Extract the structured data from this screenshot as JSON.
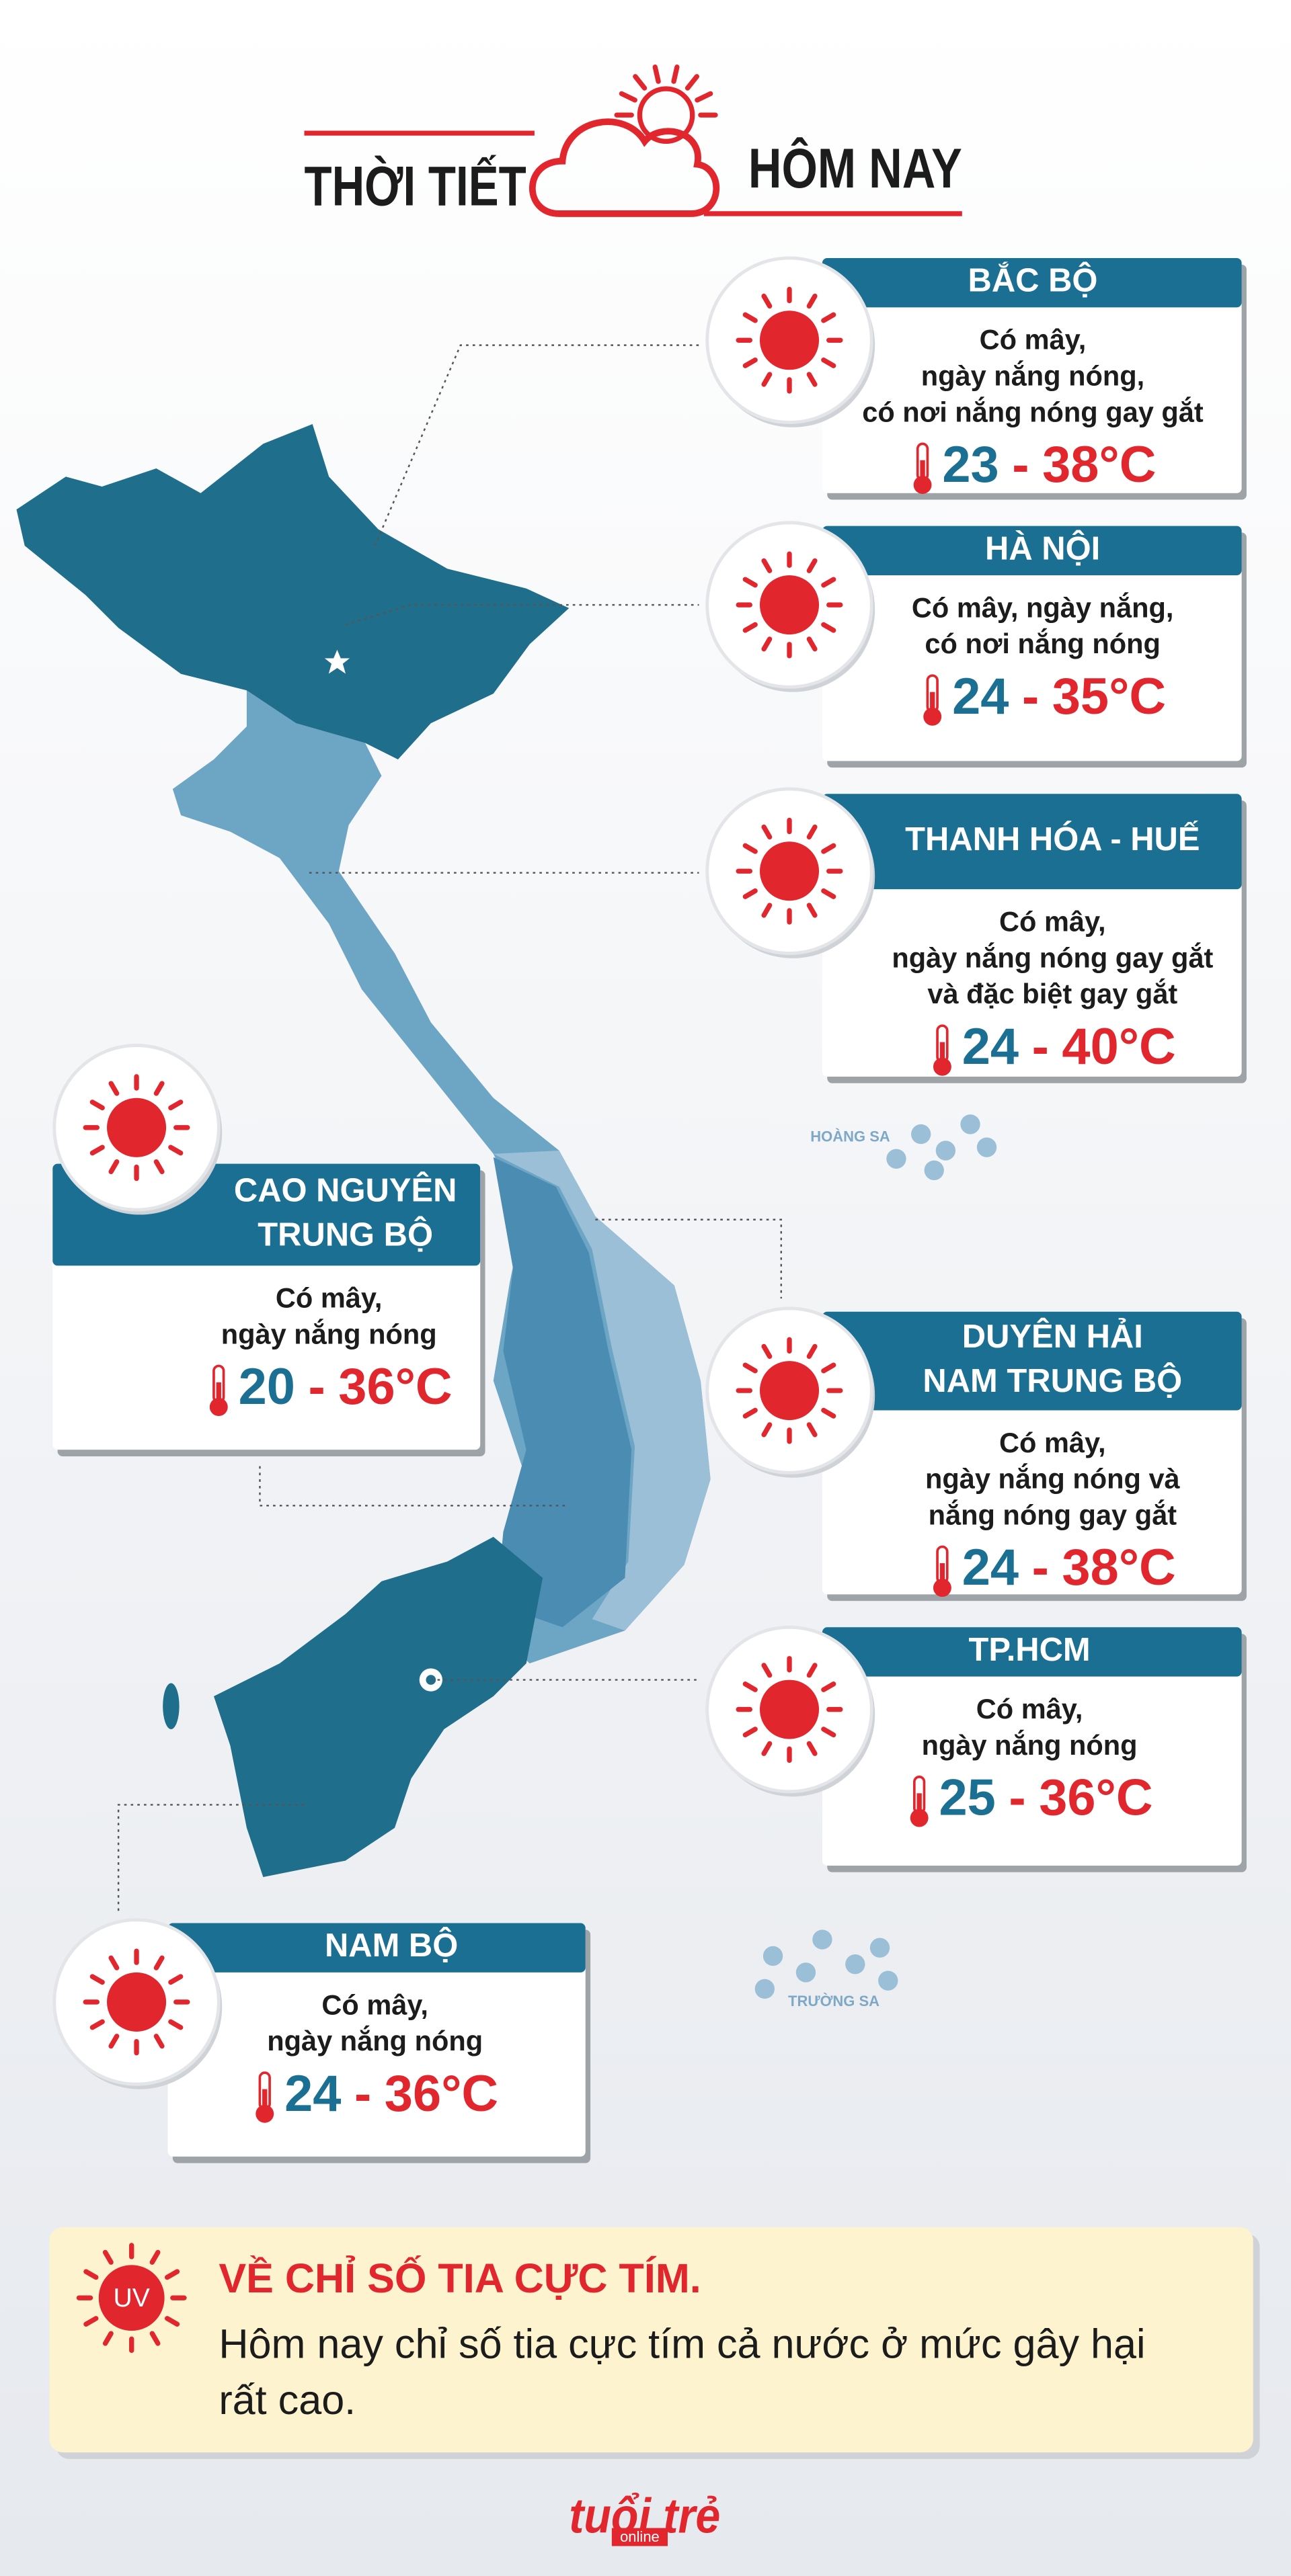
{
  "header": {
    "title_left": "THỜI TIẾT",
    "title_right": "HÔM NAY"
  },
  "regions": [
    {
      "name": [
        "BẮC BỘ"
      ],
      "description": [
        "Có mây,",
        "ngày nắng nóng,",
        "có nơi nắng nóng gay gắt"
      ],
      "low": "23",
      "high": "38"
    },
    {
      "name": [
        "HÀ NỘI"
      ],
      "description": [
        "Có mây, ngày nắng,",
        "có nơi nắng nóng"
      ],
      "low": "24",
      "high": "35"
    },
    {
      "name": [
        "THANH HÓA - HUẾ"
      ],
      "description": [
        "Có mây,",
        "ngày nắng nóng gay gắt",
        "và đặc biệt gay gắt"
      ],
      "low": "24",
      "high": "40"
    },
    {
      "name": [
        "CAO NGUYÊN",
        "TRUNG BỘ"
      ],
      "description": [
        "Có mây,",
        "ngày nắng nóng"
      ],
      "low": "20",
      "high": "36"
    },
    {
      "name": [
        "DUYÊN HẢI",
        "NAM TRUNG BỘ"
      ],
      "description": [
        "Có mây,",
        "ngày nắng nóng và",
        "nắng nóng gay gắt"
      ],
      "low": "24",
      "high": "38"
    },
    {
      "name": [
        "TP.HCM"
      ],
      "description": [
        "Có mây,",
        "ngày nắng nóng"
      ],
      "low": "25",
      "high": "36"
    },
    {
      "name": [
        "NAM BỘ"
      ],
      "description": [
        "Có mây,",
        "ngày nắng nóng"
      ],
      "low": "24",
      "high": "36"
    }
  ],
  "temp_separator": "-",
  "temp_unit": "°C",
  "map_labels": [
    "HOÀNG SA",
    "TRƯỜNG SA"
  ],
  "uv": {
    "icon": "UV",
    "title": "VỀ CHỈ SỐ TIA CỰC TÍM.",
    "text": [
      "Hôm nay chỉ số tia cực tím cả nước ở mức gây hại",
      "rất cao."
    ]
  },
  "logo": {
    "main": "tuổi trẻ",
    "sub": "online"
  }
}
